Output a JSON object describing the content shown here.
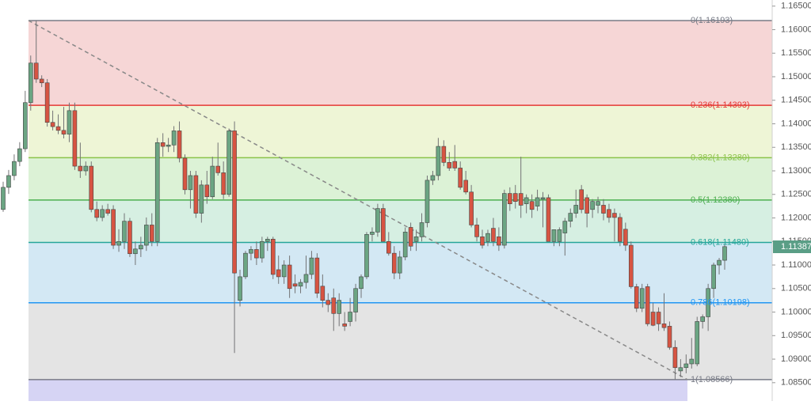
{
  "chart_data": {
    "type": "candlestick",
    "ylim": [
      1.0811,
      1.1663
    ],
    "yticks": [
      {
        "value": 1.165,
        "label": "1.16500"
      },
      {
        "value": 1.16,
        "label": "1.16000"
      },
      {
        "value": 1.155,
        "label": "1.15500"
      },
      {
        "value": 1.15,
        "label": "1.15000"
      },
      {
        "value": 1.145,
        "label": "1.14500"
      },
      {
        "value": 1.14,
        "label": "1.14000"
      },
      {
        "value": 1.135,
        "label": "1.13500"
      },
      {
        "value": 1.13,
        "label": "1.13000"
      },
      {
        "value": 1.125,
        "label": "1.12500"
      },
      {
        "value": 1.12,
        "label": "1.12000"
      },
      {
        "value": 1.115,
        "label": "1.11500"
      },
      {
        "value": 1.11,
        "label": "1.11000"
      },
      {
        "value": 1.105,
        "label": "1.10500"
      },
      {
        "value": 1.1,
        "label": "1.10000"
      },
      {
        "value": 1.095,
        "label": "1.09500"
      },
      {
        "value": 1.09,
        "label": "1.09000"
      },
      {
        "value": 1.085,
        "label": "1.08500"
      }
    ],
    "up_color": "#6ba583",
    "down_color": "#d75442",
    "last_price": {
      "value": 1.11387,
      "label": "1.11387",
      "color": "#5a9e86"
    },
    "fib_levels": [
      {
        "price": 1.16193,
        "label": "0(1.16193)",
        "color": "#787b86",
        "fill": "#f6d6d6"
      },
      {
        "price": 1.14393,
        "label": "0.236(1.14393)",
        "color": "#e53935",
        "fill": "#eef5d6"
      },
      {
        "price": 1.1328,
        "label": "0.382(1.13280)",
        "color": "#8bc34a",
        "fill": "#dcf2d6"
      },
      {
        "price": 1.1238,
        "label": "0.5(1.12380)",
        "color": "#4caf50",
        "fill": "#d6efe2"
      },
      {
        "price": 1.1148,
        "label": "0.618(1.11480)",
        "color": "#26a69a",
        "fill": "#d3e8f4"
      },
      {
        "price": 1.10198,
        "label": "0.786(1.10198)",
        "color": "#2196f3",
        "fill": "#e4e4e4"
      },
      {
        "price": 1.08566,
        "label": "1(1.08566)",
        "color": "#787b86",
        "fill": "#d6d4f4"
      }
    ],
    "candles": [
      [
        1.1218,
        1.1277,
        1.1213,
        1.1265
      ],
      [
        1.1265,
        1.1302,
        1.1251,
        1.129
      ],
      [
        1.129,
        1.1335,
        1.128,
        1.132
      ],
      [
        1.132,
        1.1361,
        1.131,
        1.1347
      ],
      [
        1.1347,
        1.147,
        1.134,
        1.1445
      ],
      [
        1.1445,
        1.1545,
        1.1428,
        1.1529
      ],
      [
        1.1529,
        1.1619,
        1.1487,
        1.1495
      ],
      [
        1.1495,
        1.1503,
        1.1478,
        1.1487
      ],
      [
        1.1487,
        1.1495,
        1.1394,
        1.1403
      ],
      [
        1.1403,
        1.1428,
        1.1386,
        1.1394
      ],
      [
        1.1394,
        1.142,
        1.1378,
        1.1386
      ],
      [
        1.1386,
        1.1436,
        1.1369,
        1.1378
      ],
      [
        1.1378,
        1.1445,
        1.1361,
        1.1428
      ],
      [
        1.1428,
        1.1445,
        1.1302,
        1.131
      ],
      [
        1.131,
        1.136,
        1.1285,
        1.13
      ],
      [
        1.13,
        1.132,
        1.129,
        1.131
      ],
      [
        1.131,
        1.132,
        1.1212,
        1.1218
      ],
      [
        1.1218,
        1.1235,
        1.1193,
        1.1201
      ],
      [
        1.1201,
        1.1227,
        1.1193,
        1.1218
      ],
      [
        1.1218,
        1.123,
        1.1205,
        1.121
      ],
      [
        1.1218,
        1.1227,
        1.1134,
        1.1142
      ],
      [
        1.1142,
        1.1176,
        1.1128,
        1.115
      ],
      [
        1.115,
        1.121,
        1.1134,
        1.1193
      ],
      [
        1.1193,
        1.12,
        1.1117,
        1.1124
      ],
      [
        1.1124,
        1.115,
        1.11,
        1.1134
      ],
      [
        1.1134,
        1.116,
        1.1117,
        1.1142
      ],
      [
        1.1142,
        1.1201,
        1.113,
        1.1185
      ],
      [
        1.1185,
        1.121,
        1.114,
        1.115
      ],
      [
        1.115,
        1.137,
        1.114,
        1.136
      ],
      [
        1.136,
        1.138,
        1.133,
        1.1352
      ],
      [
        1.1352,
        1.137,
        1.134,
        1.1355
      ],
      [
        1.1355,
        1.1395,
        1.134,
        1.1385
      ],
      [
        1.1385,
        1.1405,
        1.1318,
        1.1327
      ],
      [
        1.1327,
        1.1335,
        1.125,
        1.126
      ],
      [
        1.126,
        1.13,
        1.122,
        1.129
      ],
      [
        1.129,
        1.13,
        1.12,
        1.121
      ],
      [
        1.121,
        1.128,
        1.119,
        1.127
      ],
      [
        1.127,
        1.13,
        1.123,
        1.1245
      ],
      [
        1.1245,
        1.133,
        1.124,
        1.131
      ],
      [
        1.131,
        1.136,
        1.129,
        1.1296
      ],
      [
        1.1296,
        1.132,
        1.124,
        1.125
      ],
      [
        1.125,
        1.139,
        1.1245,
        1.1385
      ],
      [
        1.1385,
        1.1405,
        1.0913,
        1.1083
      ],
      [
        1.1025,
        1.109,
        1.1012,
        1.1075
      ],
      [
        1.1075,
        1.113,
        1.107,
        1.1125
      ],
      [
        1.1125,
        1.114,
        1.111,
        1.1133
      ],
      [
        1.1133,
        1.115,
        1.11,
        1.1115
      ],
      [
        1.1115,
        1.116,
        1.1105,
        1.115
      ],
      [
        1.115,
        1.116,
        1.113,
        1.1155
      ],
      [
        1.1155,
        1.116,
        1.107,
        1.108
      ],
      [
        1.109,
        1.112,
        1.106,
        1.1075
      ],
      [
        1.1075,
        1.111,
        1.106,
        1.11
      ],
      [
        1.11,
        1.112,
        1.103,
        1.105
      ],
      [
        1.106,
        1.108,
        1.104,
        1.1055
      ],
      [
        1.1055,
        1.107,
        1.104,
        1.1063
      ],
      [
        1.1063,
        1.112,
        1.105,
        1.108
      ],
      [
        1.108,
        1.113,
        1.107,
        1.1115
      ],
      [
        1.1115,
        1.1125,
        1.103,
        1.104
      ],
      [
        1.1055,
        1.108,
        1.101,
        1.1025
      ],
      [
        1.1025,
        1.104,
        1.1,
        1.1016
      ],
      [
        1.103,
        1.105,
        1.096,
        1.0997
      ],
      [
        1.0997,
        1.104,
        1.097,
        1.1025
      ],
      [
        1.0975,
        1.1,
        1.096,
        1.097
      ],
      [
        1.098,
        1.103,
        1.097,
        1.1
      ],
      [
        1.1,
        1.106,
        1.098,
        1.105
      ],
      [
        1.105,
        1.108,
        1.103,
        1.1075
      ],
      [
        1.1075,
        1.117,
        1.107,
        1.1165
      ],
      [
        1.1165,
        1.118,
        1.115,
        1.117
      ],
      [
        1.117,
        1.123,
        1.116,
        1.122
      ],
      [
        1.122,
        1.123,
        1.115,
        1.115
      ],
      [
        1.115,
        1.117,
        1.112,
        1.1125
      ],
      [
        1.1125,
        1.114,
        1.107,
        1.1083
      ],
      [
        1.1083,
        1.113,
        1.107,
        1.1117
      ],
      [
        1.1117,
        1.118,
        1.111,
        1.117
      ],
      [
        1.118,
        1.119,
        1.113,
        1.114
      ],
      [
        1.115,
        1.1175,
        1.113,
        1.116
      ],
      [
        1.116,
        1.121,
        1.115,
        1.119
      ],
      [
        1.119,
        1.129,
        1.118,
        1.128
      ],
      [
        1.128,
        1.13,
        1.127,
        1.129
      ],
      [
        1.129,
        1.137,
        1.128,
        1.1352
      ],
      [
        1.1352,
        1.1365,
        1.131,
        1.1318
      ],
      [
        1.1318,
        1.134,
        1.13,
        1.1306
      ],
      [
        1.132,
        1.1355,
        1.13,
        1.1306
      ],
      [
        1.1306,
        1.132,
        1.126,
        1.1265
      ],
      [
        1.128,
        1.13,
        1.125,
        1.1255
      ],
      [
        1.1255,
        1.127,
        1.118,
        1.1185
      ],
      [
        1.1185,
        1.12,
        1.115,
        1.116
      ],
      [
        1.116,
        1.1175,
        1.1135,
        1.1142
      ],
      [
        1.115,
        1.1175,
        1.114,
        1.1167
      ],
      [
        1.1178,
        1.12,
        1.114,
        1.115
      ],
      [
        1.116,
        1.118,
        1.113,
        1.1142
      ],
      [
        1.1142,
        1.126,
        1.1135,
        1.1252
      ],
      [
        1.1252,
        1.1265,
        1.1215,
        1.123
      ],
      [
        1.1252,
        1.127,
        1.122,
        1.1235
      ],
      [
        1.1252,
        1.133,
        1.12,
        1.1227
      ],
      [
        1.123,
        1.125,
        1.121,
        1.1243
      ],
      [
        1.1235,
        1.125,
        1.12,
        1.1218
      ],
      [
        1.1225,
        1.126,
        1.1215,
        1.1243
      ],
      [
        1.124,
        1.1255,
        1.118,
        1.1243
      ],
      [
        1.1243,
        1.125,
        1.115,
        1.115
      ],
      [
        1.115,
        1.1175,
        1.114,
        1.1175
      ],
      [
        1.115,
        1.118,
        1.114,
        1.1175
      ],
      [
        1.1168,
        1.12,
        1.112,
        1.1193
      ],
      [
        1.1193,
        1.122,
        1.118,
        1.121
      ],
      [
        1.121,
        1.126,
        1.12,
        1.1227
      ],
      [
        1.126,
        1.127,
        1.121,
        1.1218
      ],
      [
        1.1243,
        1.125,
        1.118,
        1.121
      ],
      [
        1.1218,
        1.124,
        1.12,
        1.1235
      ],
      [
        1.1227,
        1.1245,
        1.121,
        1.1235
      ],
      [
        1.1227,
        1.124,
        1.1195,
        1.121
      ],
      [
        1.1218,
        1.123,
        1.119,
        1.1201
      ],
      [
        1.121,
        1.122,
        1.115,
        1.1201
      ],
      [
        1.1201,
        1.121,
        1.114,
        1.115
      ],
      [
        1.1176,
        1.119,
        1.113,
        1.1142
      ],
      [
        1.1142,
        1.115,
        1.105,
        1.1054
      ],
      [
        1.1054,
        1.106,
        1.1,
        1.1008
      ],
      [
        1.1008,
        1.106,
        1.1,
        1.105
      ],
      [
        1.1054,
        1.106,
        1.097,
        1.0975
      ],
      [
        1.1,
        1.102,
        1.097,
        1.0972
      ],
      [
        1.1,
        1.101,
        1.096,
        1.0975
      ],
      [
        1.0975,
        1.104,
        1.096,
        1.0967
      ],
      [
        1.097,
        1.098,
        1.092,
        1.0925
      ],
      [
        1.0925,
        1.094,
        1.0857,
        1.0882
      ],
      [
        1.0875,
        1.09,
        1.0862,
        1.0882
      ],
      [
        1.0882,
        1.091,
        1.087,
        1.089
      ],
      [
        1.089,
        1.0945,
        1.088,
        1.09
      ],
      [
        1.089,
        1.099,
        1.0885,
        1.098
      ],
      [
        1.098,
        1.0995,
        1.0965,
        1.099
      ],
      [
        1.099,
        1.106,
        1.096,
        1.105
      ],
      [
        1.105,
        1.1105,
        1.103,
        1.11
      ],
      [
        1.11,
        1.1115,
        1.108,
        1.111
      ],
      [
        1.111,
        1.1145,
        1.109,
        1.1139
      ]
    ]
  }
}
